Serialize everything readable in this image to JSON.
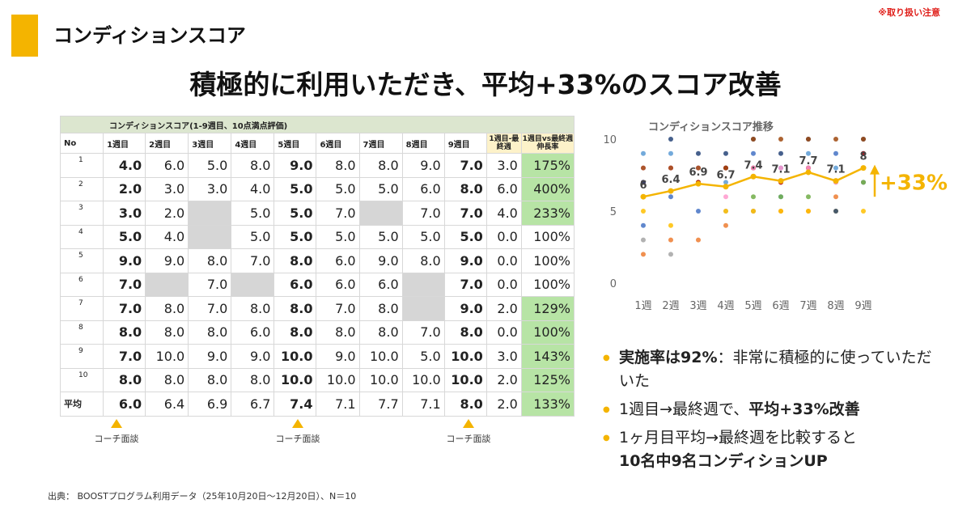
{
  "header": {
    "title": "コンディションスコア",
    "notice": "※取り扱い注意"
  },
  "headline": "積極的に利用いただき、平均+33%のスコア改善",
  "table": {
    "caption": "コンディションスコア(1-9週目、10点満点評価)",
    "headers": [
      "No",
      "1週目",
      "2週目",
      "3週目",
      "4週目",
      "5週目",
      "6週目",
      "7週目",
      "8週目",
      "9週目",
      "1週目-最終週",
      "1週目vs最終週伸長率"
    ],
    "rows": [
      {
        "no": "1",
        "cells": [
          "4.0",
          "6.0",
          "5.0",
          "8.0",
          "9.0",
          "8.0",
          "8.0",
          "9.0",
          "7.0",
          "3.0",
          "175%"
        ]
      },
      {
        "no": "2",
        "cells": [
          "2.0",
          "3.0",
          "3.0",
          "4.0",
          "5.0",
          "5.0",
          "5.0",
          "6.0",
          "8.0",
          "6.0",
          "400%"
        ]
      },
      {
        "no": "3",
        "cells": [
          "3.0",
          "2.0",
          "",
          "5.0",
          "5.0",
          "7.0",
          "",
          "7.0",
          "7.0",
          "4.0",
          "233%"
        ]
      },
      {
        "no": "4",
        "cells": [
          "5.0",
          "4.0",
          "",
          "5.0",
          "5.0",
          "5.0",
          "5.0",
          "5.0",
          "5.0",
          "0.0",
          "100%"
        ]
      },
      {
        "no": "5",
        "cells": [
          "9.0",
          "9.0",
          "8.0",
          "7.0",
          "8.0",
          "6.0",
          "9.0",
          "8.0",
          "9.0",
          "0.0",
          "100%"
        ]
      },
      {
        "no": "6",
        "cells": [
          "7.0",
          "",
          "7.0",
          "",
          "6.0",
          "6.0",
          "6.0",
          "",
          "7.0",
          "0.0",
          "100%"
        ]
      },
      {
        "no": "7",
        "cells": [
          "7.0",
          "8.0",
          "7.0",
          "8.0",
          "8.0",
          "7.0",
          "8.0",
          "",
          "9.0",
          "2.0",
          "129%"
        ]
      },
      {
        "no": "8",
        "cells": [
          "8.0",
          "8.0",
          "8.0",
          "6.0",
          "8.0",
          "8.0",
          "8.0",
          "7.0",
          "8.0",
          "0.0",
          "100%"
        ]
      },
      {
        "no": "9",
        "cells": [
          "7.0",
          "10.0",
          "9.0",
          "9.0",
          "10.0",
          "9.0",
          "10.0",
          "5.0",
          "10.0",
          "3.0",
          "143%"
        ]
      },
      {
        "no": "10",
        "cells": [
          "8.0",
          "8.0",
          "8.0",
          "8.0",
          "10.0",
          "10.0",
          "10.0",
          "10.0",
          "10.0",
          "2.0",
          "125%"
        ]
      }
    ],
    "average": {
      "no": "平均",
      "cells": [
        "6.0",
        "6.4",
        "6.9",
        "6.7",
        "7.4",
        "7.1",
        "7.7",
        "7.1",
        "8.0",
        "2.0",
        "133%"
      ]
    },
    "green_rows": [
      0,
      1,
      2,
      6,
      7,
      8,
      9,
      10
    ],
    "markers": [
      "コーチ面談",
      "コーチ面談",
      "コーチ面談"
    ]
  },
  "chart_data": {
    "type": "line",
    "title": "コンディションスコア推移",
    "categories": [
      "1週",
      "2週",
      "3週",
      "4週",
      "5週",
      "6週",
      "7週",
      "8週",
      "9週"
    ],
    "yticks": [
      "0",
      "5",
      "10"
    ],
    "ylim": [
      0,
      10
    ],
    "series": [
      {
        "values": [
          6.0,
          6.4,
          6.9,
          6.7,
          7.4,
          7.1,
          7.7,
          7.1,
          8.0
        ],
        "labels": [
          "6",
          "6.4",
          "6.9",
          "6.7",
          "7.4",
          "7.1",
          "7.7",
          "7.1",
          "8"
        ]
      }
    ],
    "scatter": [
      {
        "color": "#4472c4",
        "values": [
          4,
          6,
          5,
          8,
          9,
          8,
          8,
          9,
          7
        ]
      },
      {
        "color": "#ed7d31",
        "values": [
          2,
          3,
          3,
          4,
          5,
          5,
          5,
          6,
          8
        ]
      },
      {
        "color": "#a5a5a5",
        "values": [
          3,
          2,
          null,
          5,
          5,
          7,
          null,
          7,
          7
        ]
      },
      {
        "color": "#ffc000",
        "values": [
          5,
          4,
          null,
          5,
          5,
          5,
          5,
          5,
          5
        ]
      },
      {
        "color": "#5b9bd5",
        "values": [
          9,
          9,
          8,
          7,
          8,
          6,
          9,
          8,
          9
        ]
      },
      {
        "color": "#70ad47",
        "values": [
          7,
          null,
          7,
          null,
          6,
          6,
          6,
          null,
          7
        ]
      },
      {
        "color": "#c00000",
        "values": [
          7,
          8,
          7,
          8,
          8,
          7,
          8,
          null,
          9
        ]
      },
      {
        "color": "#ff99cc",
        "values": [
          8,
          8,
          8,
          6,
          8,
          8,
          8,
          7,
          8
        ]
      },
      {
        "color": "#264478",
        "values": [
          7,
          10,
          9,
          9,
          10,
          9,
          10,
          5,
          10
        ]
      },
      {
        "color": "#9e480e",
        "values": [
          8,
          8,
          8,
          8,
          10,
          10,
          10,
          10,
          10
        ]
      }
    ],
    "annotation": "+33%",
    "colors": {
      "line": "#f4b400",
      "accent": "#f4b400"
    }
  },
  "bullets": [
    {
      "bold": "実施率は92%",
      "rest": "：非常に積極的に使っていただいた"
    },
    {
      "pre": "1週目→最終週で、",
      "bold": "平均+33%改善"
    },
    {
      "pre": "1ヶ月目平均→最終週を比較すると",
      "bold": "10名中9名コンディションUP"
    }
  ],
  "source": "出典： BOOSTプログラム利用データ（25年10月20日〜12月20日）、N＝10"
}
